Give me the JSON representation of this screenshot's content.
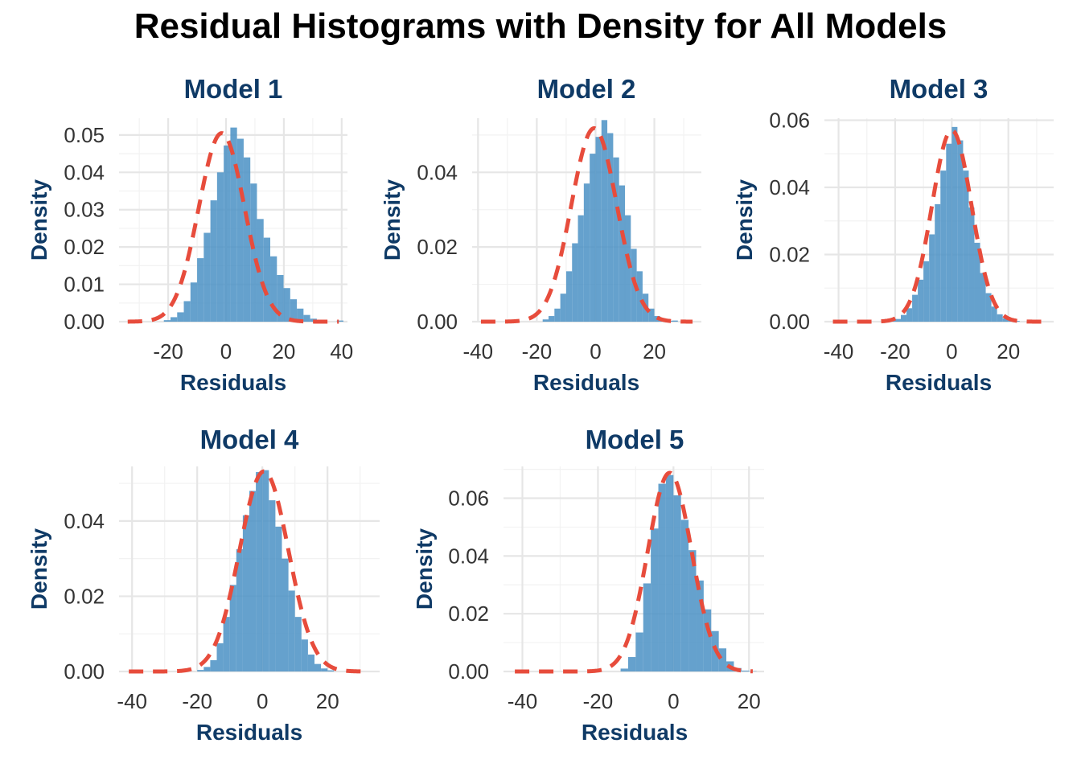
{
  "title": "Residual Histograms with Density for All Models",
  "colors": {
    "histogram_fill": "#4a90c4",
    "density_line": "#e74c3c",
    "panel_title": "#0f3a66",
    "axis_title": "#0f3a66",
    "tick_label": "#333333",
    "grid_major": "#e6e6e6",
    "grid_minor": "#f2f2f2"
  },
  "chart_data": [
    {
      "type": "histogram",
      "title": "Model 1",
      "xlabel": "Residuals",
      "ylabel": "Density",
      "xlim": [
        -37,
        42
      ],
      "ylim": [
        0,
        0.0545
      ],
      "xticks": [
        -20,
        0,
        20,
        40
      ],
      "xtick_labels": [
        "-20",
        "0",
        "20",
        "40"
      ],
      "yticks": [
        0,
        0.01,
        0.02,
        0.03,
        0.04,
        0.05
      ],
      "ytick_labels": [
        "0.00",
        "0.01",
        "0.02",
        "0.03",
        "0.04",
        "0.05"
      ],
      "grid": true,
      "bins": {
        "start": -33,
        "width": 2.3,
        "values": [
          0.0003,
          0.0,
          0.0,
          0.0,
          0.0,
          0.0004,
          0.0012,
          0.0025,
          0.0055,
          0.0105,
          0.017,
          0.0238,
          0.0325,
          0.04,
          0.0472,
          0.052,
          0.049,
          0.044,
          0.037,
          0.0275,
          0.0225,
          0.0175,
          0.0125,
          0.009,
          0.006,
          0.0035,
          0.0018,
          0.0008,
          0.0003,
          0.0,
          0.0,
          0.0003
        ]
      },
      "density": {
        "mean": -1.5,
        "sd": 7.9
      }
    },
    {
      "type": "histogram",
      "title": "Model 2",
      "xlabel": "Residuals",
      "ylabel": "Density",
      "xlim": [
        -42,
        36
      ],
      "ylim": [
        0,
        0.0545
      ],
      "xticks": [
        -40,
        -20,
        0,
        20
      ],
      "xtick_labels": [
        "-40",
        "-20",
        "0",
        "20"
      ],
      "yticks": [
        0,
        0.02,
        0.04
      ],
      "ytick_labels": [
        "0.00",
        "0.02",
        "0.04"
      ],
      "grid": true,
      "bins": {
        "start": -18,
        "width": 2.0,
        "values": [
          0.0006,
          0.0015,
          0.0035,
          0.0075,
          0.0135,
          0.021,
          0.0285,
          0.037,
          0.045,
          0.0495,
          0.054,
          0.0505,
          0.044,
          0.0365,
          0.0285,
          0.0195,
          0.0135,
          0.0075,
          0.0035,
          0.0015,
          0.0006,
          0.0002,
          0.0003,
          0.0
        ]
      },
      "density": {
        "mean": -0.5,
        "sd": 7.7
      }
    },
    {
      "type": "histogram",
      "title": "Model 3",
      "xlabel": "Residuals",
      "ylabel": "Density",
      "xlim": [
        -45,
        36
      ],
      "ylim": [
        0,
        0.0606
      ],
      "xticks": [
        -40,
        -20,
        0,
        20
      ],
      "xtick_labels": [
        "-40",
        "-20",
        "0",
        "20"
      ],
      "yticks": [
        0,
        0.02,
        0.04,
        0.06
      ],
      "ytick_labels": [
        "0.00",
        "0.02",
        "0.04",
        "0.06"
      ],
      "grid": true,
      "bins": {
        "start": -22,
        "width": 2.0,
        "values": [
          0.0003,
          0.0008,
          0.002,
          0.004,
          0.008,
          0.0125,
          0.018,
          0.026,
          0.035,
          0.045,
          0.053,
          0.058,
          0.054,
          0.045,
          0.034,
          0.0235,
          0.0145,
          0.0085,
          0.0045,
          0.0022,
          0.001,
          0.0004,
          0.0002
        ]
      },
      "density": {
        "mean": 0.0,
        "sd": 7.0
      }
    },
    {
      "type": "histogram",
      "title": "Model 4",
      "xlabel": "Residuals",
      "ylabel": "Density",
      "xlim": [
        -44,
        36
      ],
      "ylim": [
        0,
        0.0545
      ],
      "xticks": [
        -40,
        -20,
        0,
        20
      ],
      "xtick_labels": [
        "-40",
        "-20",
        "0",
        "20"
      ],
      "yticks": [
        0,
        0.02,
        0.04
      ],
      "ytick_labels": [
        "0.00",
        "0.02",
        "0.04"
      ],
      "grid": true,
      "bins": {
        "start": -20,
        "width": 2.0,
        "values": [
          0.0004,
          0.0012,
          0.003,
          0.0075,
          0.0145,
          0.023,
          0.0325,
          0.0415,
          0.048,
          0.053,
          0.0535,
          0.0455,
          0.0385,
          0.03,
          0.0215,
          0.0145,
          0.0085,
          0.0045,
          0.002,
          0.0008,
          0.0003
        ]
      },
      "density": {
        "mean": 0.5,
        "sd": 7.5
      }
    },
    {
      "type": "histogram",
      "title": "Model 5",
      "xlabel": "Residuals",
      "ylabel": "Density",
      "xlim": [
        -45,
        24
      ],
      "ylim": [
        0,
        0.071
      ],
      "xticks": [
        -40,
        -20,
        0,
        20
      ],
      "xtick_labels": [
        "-40",
        "-20",
        "0",
        "20"
      ],
      "yticks": [
        0,
        0.02,
        0.04,
        0.06
      ],
      "ytick_labels": [
        "0.00",
        "0.02",
        "0.04",
        "0.06"
      ],
      "grid": true,
      "bins": {
        "start": -14,
        "width": 2.0,
        "values": [
          0.001,
          0.005,
          0.0135,
          0.0305,
          0.0495,
          0.065,
          0.068,
          0.061,
          0.0525,
          0.042,
          0.0315,
          0.0215,
          0.014,
          0.008,
          0.0035,
          0.0012,
          0.0003,
          0.0001
        ]
      },
      "density": {
        "mean": -1.0,
        "sd": 5.8
      }
    }
  ]
}
